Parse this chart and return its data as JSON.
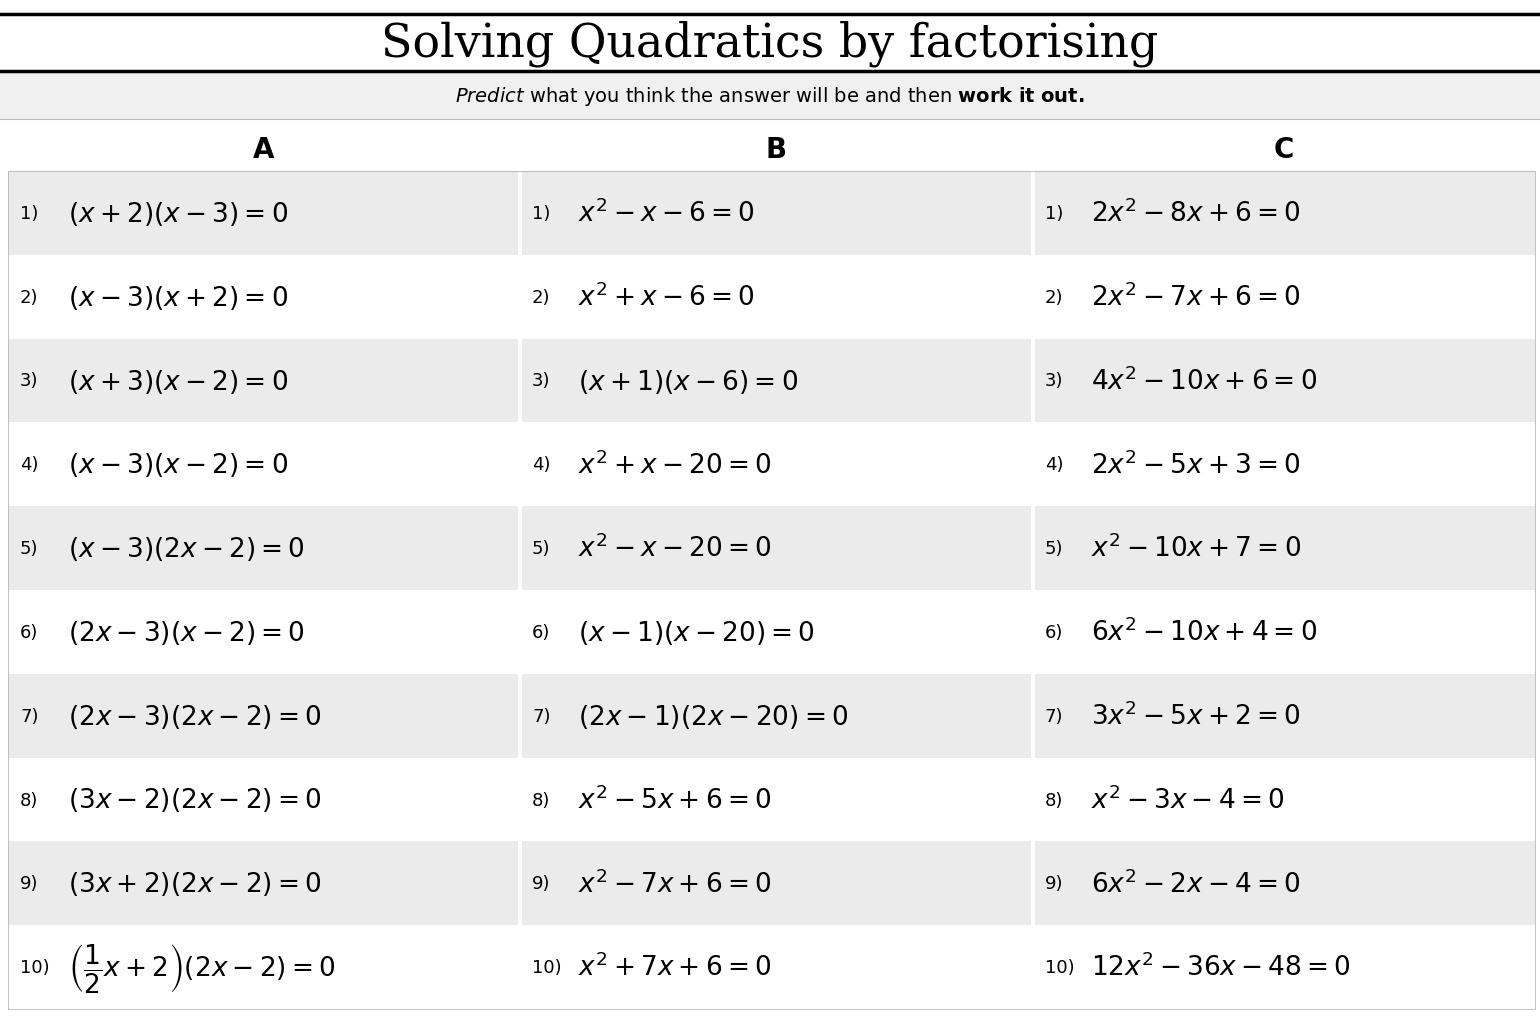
{
  "title": "Solving Quadratics by factorising",
  "col_A_latex": [
    "(x + 2)(x - 3) = 0",
    "(x - 3)(x + 2) = 0",
    "(x + 3)(x - 2) = 0",
    "(x - 3)(x - 2) = 0",
    "(x - 3)(2x - 2) = 0",
    "(2x - 3)(x - 2) = 0",
    "(2x - 3)(2x - 2) = 0",
    "(3x - 2)(2x - 2) = 0",
    "(3x + 2)(2x - 2) = 0",
    "\\left(\\frac{1}{2}x + 2\\right)(2x - 2) = 0"
  ],
  "col_B_latex": [
    "x^2 - x - 6 = 0",
    "x^2 + x - 6 = 0",
    "(x + 1)(x - 6) = 0",
    "x^2 + x - 20 = 0",
    "x^2 - x - 20 = 0",
    "(x - 1)(x - 20) = 0",
    "(2x - 1)(2x - 20) = 0",
    "x^2 - 5x + 6 = 0",
    "x^2 - 7x + 6 = 0",
    "x^2 + 7x + 6 = 0"
  ],
  "col_C_latex": [
    "2x^2 - 8x + 6 = 0",
    "2x^2 - 7x + 6 = 0",
    "4x^2 - 10x + 6 = 0",
    "2x^2 - 5x + 3 = 0",
    "x^2 - 10x + 7 = 0",
    "6x^2 - 10x + 4 = 0",
    "3x^2 - 5x + 2 = 0",
    "x^2 - 3x - 4 = 0",
    "6x^2 - 2x - 4 = 0",
    "12x^2 - 36x - 48 = 0"
  ],
  "highlight_color": "#ebebeb",
  "bg_color": "#ffffff",
  "subtitle_bg": "#f0f0f0",
  "text_color": "#000000",
  "line_color": "#000000"
}
